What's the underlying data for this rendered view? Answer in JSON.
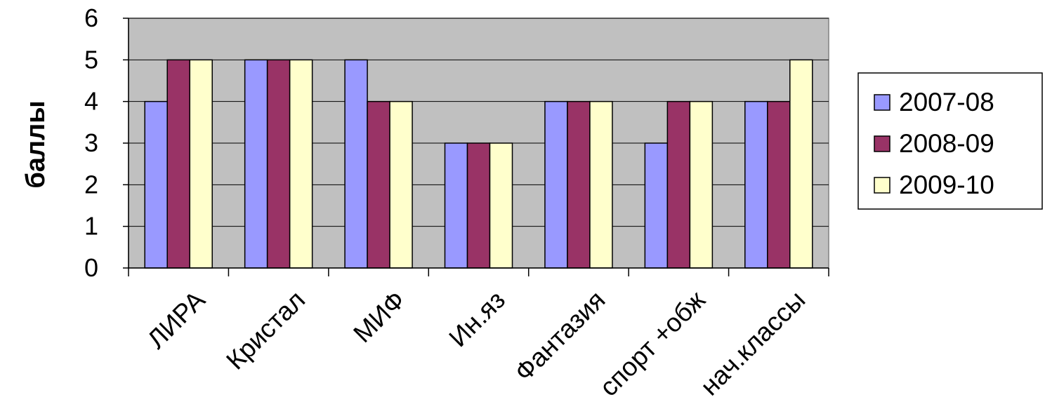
{
  "chart_data": {
    "type": "bar",
    "categories": [
      "ЛИРА",
      "Кристал",
      "МИФ",
      "Ин.яз",
      "Фантазия",
      "спорт +обж",
      "нач.классы"
    ],
    "series": [
      {
        "name": "2007-08",
        "values": [
          4,
          5,
          5,
          3,
          4,
          3,
          4
        ],
        "color": "#9999FF"
      },
      {
        "name": "2008-09",
        "values": [
          5,
          5,
          4,
          3,
          4,
          4,
          4
        ],
        "color": "#993366"
      },
      {
        "name": "2009-10",
        "values": [
          5,
          5,
          4,
          3,
          4,
          4,
          5
        ],
        "color": "#FFFFCC"
      }
    ],
    "title": "",
    "xlabel": "",
    "ylabel": "баллы",
    "ylim": [
      0,
      6
    ],
    "yticks": [
      "0",
      "1",
      "2",
      "3",
      "4",
      "5",
      "6"
    ],
    "grid": true,
    "legend_position": "right",
    "plot_background": "#C0C0C0"
  }
}
